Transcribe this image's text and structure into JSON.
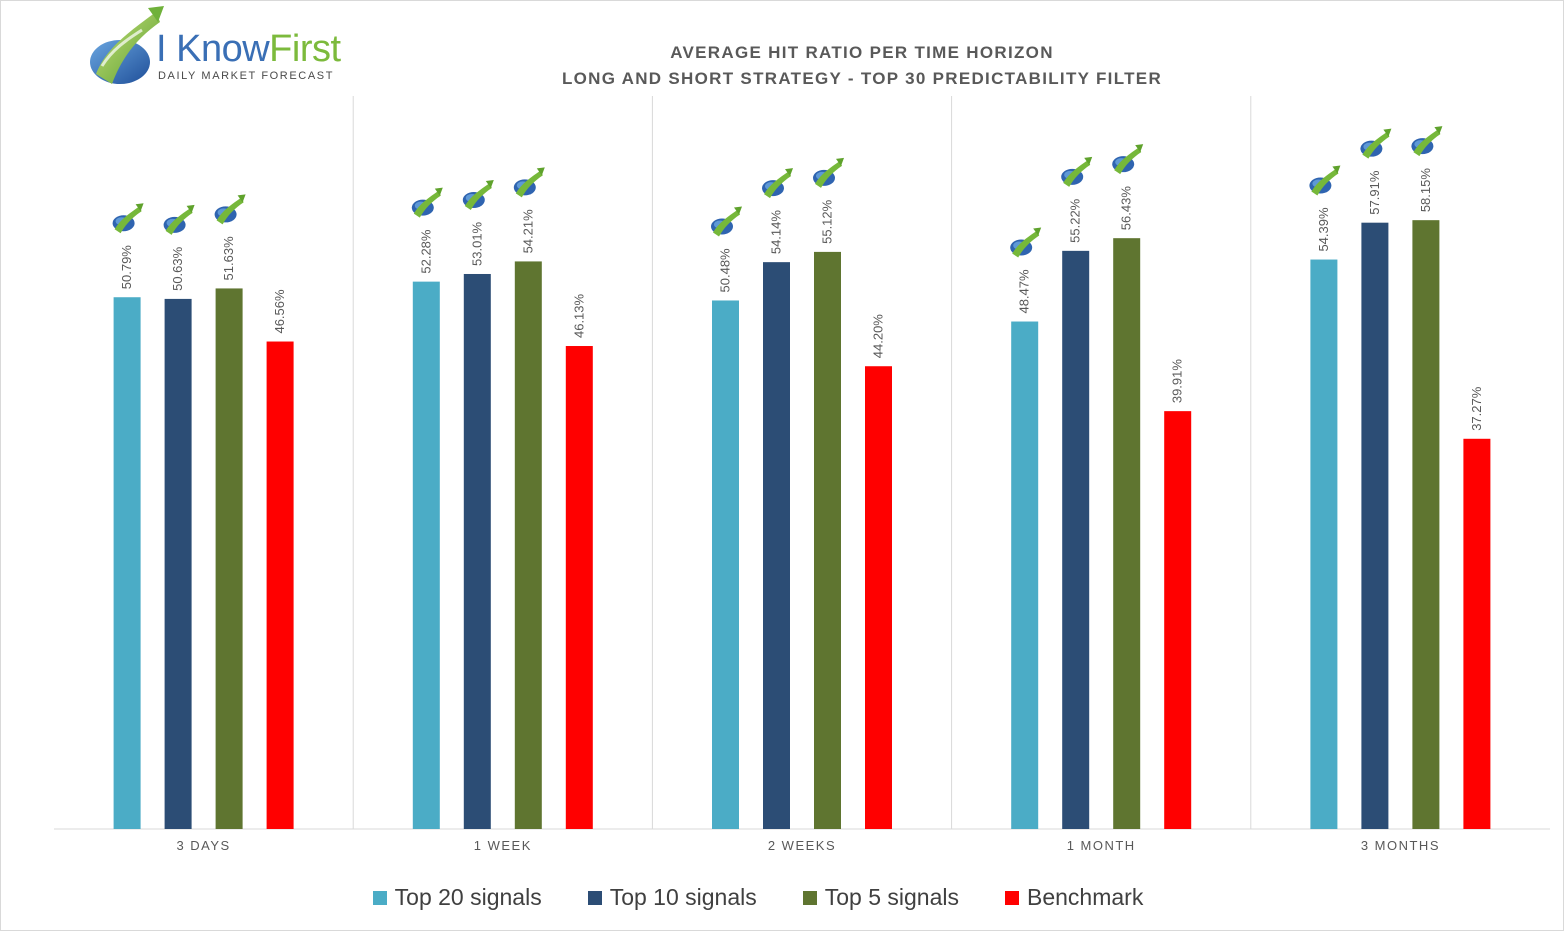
{
  "logo": {
    "name_part1": "I Know",
    "name_part2": "First",
    "tagline": "Daily Market Forecast"
  },
  "chart_data": {
    "type": "bar",
    "title": "AVERAGE HIT RATIO PER TIME HORIZON",
    "subtitle": "LONG AND SHORT STRATEGY - TOP 30 PREDICTABILITY FILTER",
    "categories": [
      "3 DAYS",
      "1 WEEK",
      "2 WEEKS",
      "1 MONTH",
      "3 MONTHS"
    ],
    "series": [
      {
        "name": "Top 20 signals",
        "color": "#4bacc6",
        "values": [
          50.79,
          52.28,
          50.48,
          48.47,
          54.39
        ],
        "labels": [
          "50.79%",
          "52.28%",
          "50.48%",
          "48.47%",
          "54.39%"
        ]
      },
      {
        "name": "Top 10 signals",
        "color": "#2c4d75",
        "values": [
          50.63,
          53.01,
          54.14,
          55.22,
          57.91
        ],
        "labels": [
          "50.63%",
          "53.01%",
          "54.14%",
          "55.22%",
          "57.91%"
        ]
      },
      {
        "name": "Top 5 signals",
        "color": "#5f7530",
        "values": [
          51.63,
          54.21,
          55.12,
          56.43,
          58.15
        ],
        "labels": [
          "51.63%",
          "54.21%",
          "55.12%",
          "56.43%",
          "58.15%"
        ]
      },
      {
        "name": "Benchmark",
        "color": "#ff0000",
        "values": [
          46.56,
          46.13,
          44.2,
          39.91,
          37.27
        ],
        "labels": [
          "46.56%",
          "46.13%",
          "44.20%",
          "39.91%",
          "37.27%"
        ]
      }
    ],
    "ylim": [
      0,
      70
    ],
    "xlabel": "",
    "ylabel": "",
    "grid": "vertical category separators",
    "legend_position": "bottom",
    "marker_icon": "i-know-first-logo-icon"
  }
}
